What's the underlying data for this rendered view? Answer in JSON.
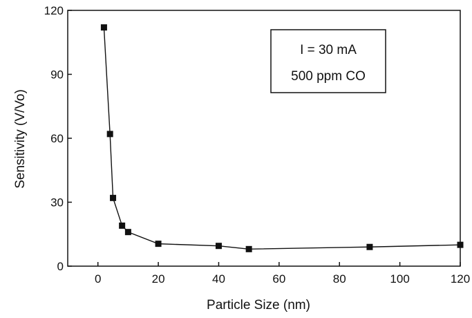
{
  "chart_data": {
    "type": "line",
    "title": "",
    "xlabel": "Particle Size (nm)",
    "ylabel": "Sensitivity (V/Vo)",
    "xlim": [
      -10,
      120
    ],
    "ylim": [
      0,
      120
    ],
    "x_ticks": [
      0,
      20,
      40,
      60,
      80,
      100,
      120
    ],
    "y_ticks": [
      0,
      30,
      60,
      90,
      120
    ],
    "x_tick_labels": [
      "0",
      "20",
      "40",
      "60",
      "80",
      "100",
      "120"
    ],
    "y_tick_labels": [
      "0",
      "30",
      "60",
      "90",
      "120"
    ],
    "grid": false,
    "legend_position": "top-right",
    "annotations": [
      "I = 30 mA",
      "500 ppm CO"
    ],
    "series": [
      {
        "x": [
          2,
          4,
          5,
          8,
          10,
          20,
          40,
          50,
          90,
          120
        ],
        "y": [
          112,
          62,
          32,
          19,
          16,
          10.5,
          9.5,
          8,
          9,
          10
        ],
        "marker": "square",
        "line": "solid",
        "color": "#111111"
      }
    ]
  }
}
